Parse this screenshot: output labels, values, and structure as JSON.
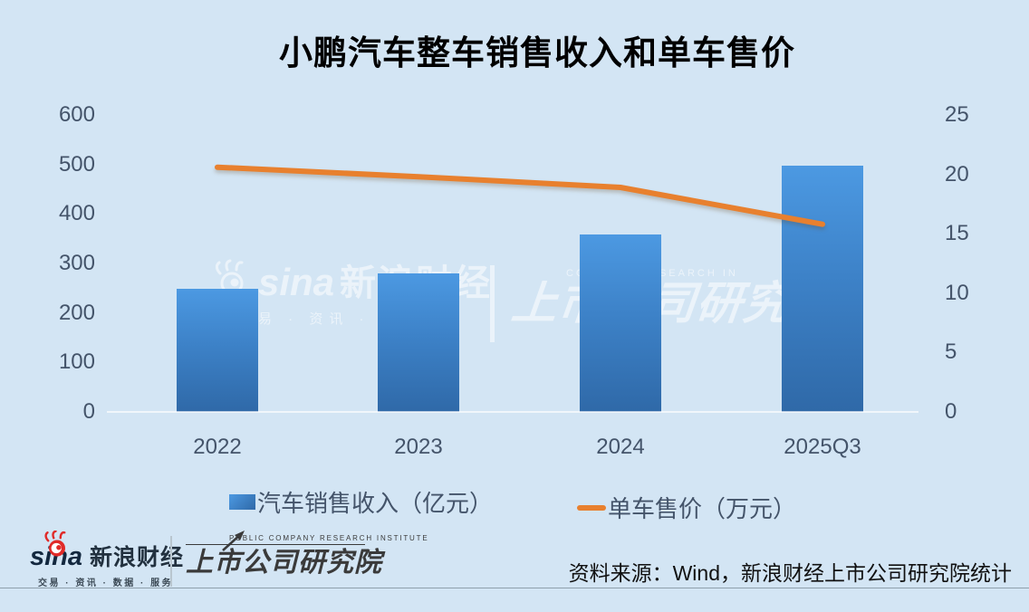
{
  "title": "小鹏汽车整车销售收入和单车售价",
  "chart_data": {
    "type": "bar",
    "title": "小鹏汽车整车销售收入和单车售价",
    "categories": [
      "2022",
      "2023",
      "2024",
      "2025Q3"
    ],
    "series": [
      {
        "name": "汽车销售收入（亿元）",
        "type": "bar",
        "axis": "left",
        "values": [
          248,
          280,
          358,
          497
        ]
      },
      {
        "name": "单车售价（万元）",
        "type": "line",
        "axis": "right",
        "values": [
          20.6,
          19.8,
          18.9,
          15.8
        ]
      }
    ],
    "left_axis": {
      "label": "",
      "min": 0,
      "max": 600,
      "ticks": [
        0,
        100,
        200,
        300,
        400,
        500,
        600
      ]
    },
    "right_axis": {
      "label": "",
      "min": 0,
      "max": 25,
      "ticks": [
        0,
        5,
        10,
        15,
        20,
        25
      ]
    },
    "grid": false,
    "legend_position": "bottom"
  },
  "watermark": {
    "brand": "sina",
    "cn_left": "新浪财经",
    "tagline": "易 · 资讯 · 数",
    "en_right": "COMPANY RESEARCH IN",
    "cn_right": "上市公司研究院"
  },
  "footer": {
    "sina": {
      "brand": "sina",
      "cn": "新浪财经",
      "tagline": "交易 · 资讯 · 数据 · 服务"
    },
    "pcri": {
      "en": "PUBLIC COMPANY RESEARCH INSTITUTE",
      "cn": "上市公司研究院"
    },
    "source": "资料来源：Wind，新浪财经上市公司研究院统计"
  },
  "colors": {
    "background": "#d3e5f4",
    "bar_top": "#4c99e2",
    "bar_bottom": "#2f69a8",
    "line": "#e8802e",
    "axis_text": "#44546a",
    "title_text": "#000000",
    "sina_red": "#e02a28",
    "footer_logo_dark": "#3a3a3a"
  }
}
